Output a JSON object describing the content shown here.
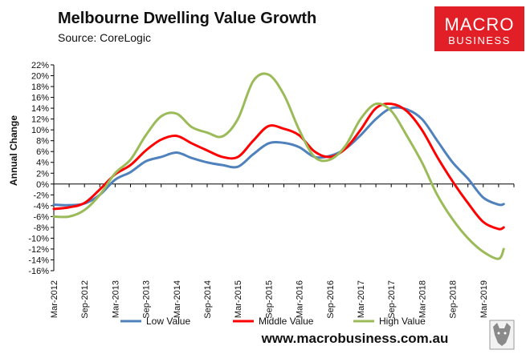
{
  "brand": {
    "logo_line1": "MACRO",
    "logo_line2": "BUSINESS",
    "logo_color": "#e21f26",
    "website": "www.macrobusiness.com.au"
  },
  "chart_data": {
    "type": "line",
    "title": "Melbourne Dwelling Value Growth",
    "subtitle": "Source: CoreLogic",
    "ylabel": "Annual Change",
    "xlabel": "",
    "ylim": [
      -16,
      22
    ],
    "yticks": [
      22,
      20,
      18,
      16,
      14,
      12,
      10,
      8,
      6,
      4,
      2,
      0,
      -2,
      -4,
      -6,
      -8,
      -10,
      -12,
      -14,
      -16
    ],
    "ytick_labels": [
      "22%",
      "20%",
      "18%",
      "16%",
      "14%",
      "12%",
      "10%",
      "8%",
      "6%",
      "4%",
      "2%",
      "0%",
      "-2%",
      "-4%",
      "-6%",
      "-8%",
      "-10%",
      "-12%",
      "-14%",
      "-16%"
    ],
    "x_start": "Mar-2012",
    "x_end": "Sep-2019",
    "x_tick_labels": [
      "Mar-2012",
      "Sep-2012",
      "Mar-2013",
      "Sep-2013",
      "Mar-2014",
      "Sep-2014",
      "Mar-2015",
      "Sep-2015",
      "Mar-2016",
      "Sep-2016",
      "Mar-2017",
      "Sep-2017",
      "Mar-2018",
      "Sep-2018",
      "Mar-2019"
    ],
    "grid": false,
    "legend_position": "bottom",
    "series": [
      {
        "name": "Low Value",
        "color": "#4f81bd",
        "points": [
          [
            "Mar-2012",
            -3.8
          ],
          [
            "Jun-2012",
            -3.9
          ],
          [
            "Sep-2012",
            -3.6
          ],
          [
            "Dec-2012",
            -2.0
          ],
          [
            "Mar-2013",
            0.8
          ],
          [
            "Jun-2013",
            2.2
          ],
          [
            "Sep-2013",
            4.2
          ],
          [
            "Dec-2013",
            5.0
          ],
          [
            "Mar-2014",
            5.8
          ],
          [
            "Jun-2014",
            4.8
          ],
          [
            "Sep-2014",
            4.0
          ],
          [
            "Dec-2014",
            3.5
          ],
          [
            "Mar-2015",
            3.2
          ],
          [
            "Jun-2015",
            5.5
          ],
          [
            "Sep-2015",
            7.5
          ],
          [
            "Dec-2015",
            7.6
          ],
          [
            "Mar-2016",
            6.8
          ],
          [
            "Jun-2016",
            5.0
          ],
          [
            "Sep-2016",
            5.2
          ],
          [
            "Dec-2016",
            6.5
          ],
          [
            "Mar-2017",
            9.0
          ],
          [
            "Jun-2017",
            12.0
          ],
          [
            "Sep-2017",
            14.0
          ],
          [
            "Dec-2017",
            13.8
          ],
          [
            "Mar-2018",
            12.0
          ],
          [
            "Jun-2018",
            8.0
          ],
          [
            "Sep-2018",
            4.0
          ],
          [
            "Dec-2018",
            1.0
          ],
          [
            "Mar-2019",
            -2.5
          ],
          [
            "Jun-2019",
            -3.8
          ],
          [
            "Jul-2019",
            -3.7
          ]
        ]
      },
      {
        "name": "Middle Value",
        "color": "#ff0000",
        "points": [
          [
            "Mar-2012",
            -4.6
          ],
          [
            "Jun-2012",
            -4.3
          ],
          [
            "Sep-2012",
            -3.5
          ],
          [
            "Dec-2012",
            -1.0
          ],
          [
            "Mar-2013",
            1.8
          ],
          [
            "Jun-2013",
            3.5
          ],
          [
            "Sep-2013",
            6.2
          ],
          [
            "Dec-2013",
            8.2
          ],
          [
            "Mar-2014",
            8.9
          ],
          [
            "Jun-2014",
            7.5
          ],
          [
            "Sep-2014",
            6.2
          ],
          [
            "Dec-2014",
            5.0
          ],
          [
            "Mar-2015",
            5.0
          ],
          [
            "Jun-2015",
            8.0
          ],
          [
            "Sep-2015",
            10.7
          ],
          [
            "Dec-2015",
            10.2
          ],
          [
            "Mar-2016",
            9.0
          ],
          [
            "Jun-2016",
            6.0
          ],
          [
            "Sep-2016",
            5.0
          ],
          [
            "Dec-2016",
            6.5
          ],
          [
            "Mar-2017",
            10.0
          ],
          [
            "Jun-2017",
            14.0
          ],
          [
            "Sep-2017",
            14.8
          ],
          [
            "Dec-2017",
            13.5
          ],
          [
            "Mar-2018",
            10.0
          ],
          [
            "Jun-2018",
            5.0
          ],
          [
            "Sep-2018",
            0.5
          ],
          [
            "Dec-2018",
            -3.5
          ],
          [
            "Mar-2019",
            -7.0
          ],
          [
            "Jun-2019",
            -8.3
          ],
          [
            "Jul-2019",
            -8.0
          ]
        ]
      },
      {
        "name": "High Value",
        "color": "#9bbb59",
        "points": [
          [
            "Mar-2012",
            -6.0
          ],
          [
            "Jun-2012",
            -6.0
          ],
          [
            "Sep-2012",
            -4.8
          ],
          [
            "Dec-2012",
            -2.0
          ],
          [
            "Mar-2013",
            2.0
          ],
          [
            "Jun-2013",
            4.5
          ],
          [
            "Sep-2013",
            9.0
          ],
          [
            "Dec-2013",
            12.5
          ],
          [
            "Mar-2014",
            13.0
          ],
          [
            "Jun-2014",
            10.5
          ],
          [
            "Sep-2014",
            9.5
          ],
          [
            "Dec-2014",
            8.8
          ],
          [
            "Mar-2015",
            12.0
          ],
          [
            "Jun-2015",
            19.0
          ],
          [
            "Sep-2015",
            20.2
          ],
          [
            "Dec-2015",
            16.5
          ],
          [
            "Mar-2016",
            10.0
          ],
          [
            "Jun-2016",
            5.0
          ],
          [
            "Sep-2016",
            4.5
          ],
          [
            "Dec-2016",
            7.0
          ],
          [
            "Mar-2017",
            12.0
          ],
          [
            "Jun-2017",
            14.8
          ],
          [
            "Sep-2017",
            13.5
          ],
          [
            "Dec-2017",
            9.0
          ],
          [
            "Mar-2018",
            4.0
          ],
          [
            "Jun-2018",
            -2.0
          ],
          [
            "Sep-2018",
            -6.5
          ],
          [
            "Dec-2018",
            -10.0
          ],
          [
            "Mar-2019",
            -12.5
          ],
          [
            "Jun-2019",
            -13.8
          ],
          [
            "Jul-2019",
            -12.0
          ]
        ]
      }
    ]
  }
}
